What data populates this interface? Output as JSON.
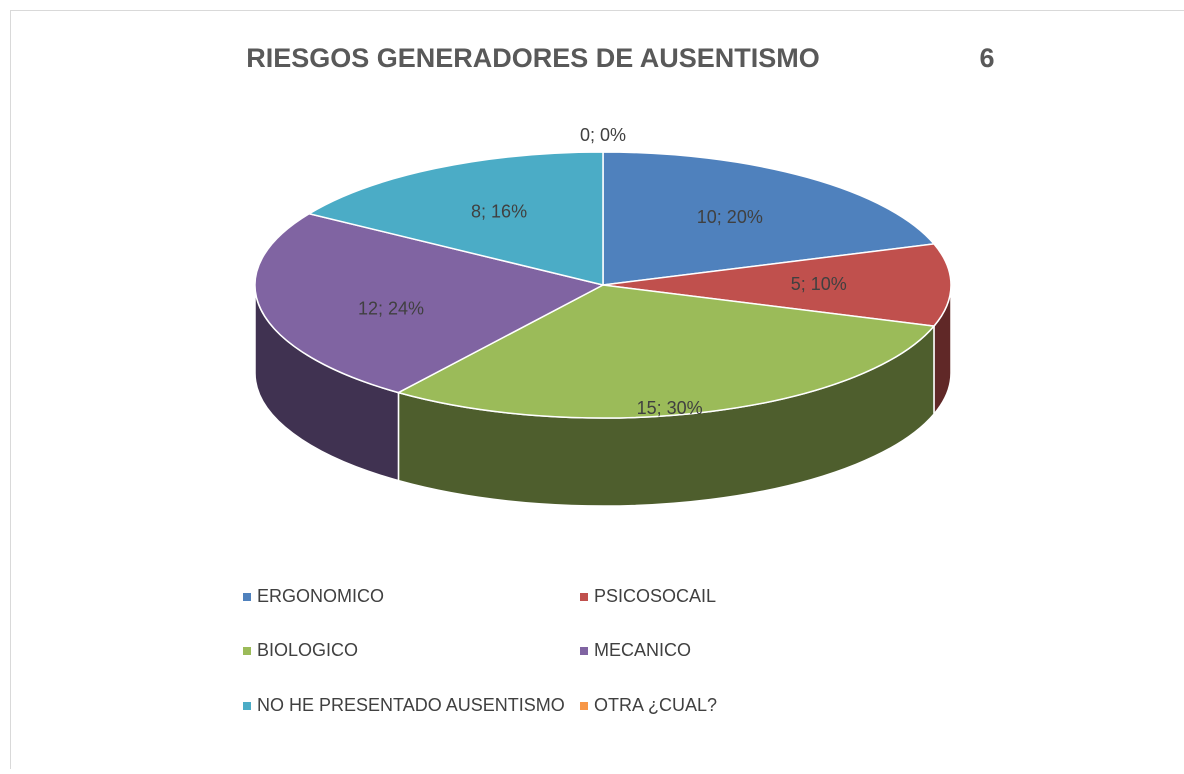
{
  "chart_data": {
    "type": "pie",
    "title": "RIESGOS GENERADORES DE AUSENTISMO",
    "title_number": "6",
    "categories": [
      "ERGONOMICO",
      "PSICOSOCAIL",
      "BIOLOGICO",
      "MECANICO",
      "NO HE PRESENTADO AUSENTISMO",
      "OTRA ¿CUAL?"
    ],
    "values": [
      10,
      5,
      15,
      12,
      8,
      0
    ],
    "value_labels": [
      "10; 20%",
      "5; 10%",
      "15; 30%",
      "12; 24%",
      "8; 16%",
      "0; 0%"
    ],
    "colors": [
      "#4f81bd",
      "#c0504d",
      "#9bbb59",
      "#8064a2",
      "#4bacc6",
      "#f79646"
    ],
    "legend": "bottom"
  }
}
